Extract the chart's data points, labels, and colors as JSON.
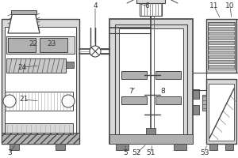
{
  "bg_color": "#ffffff",
  "line_color": "#444444",
  "gray_light": "#d8d8d8",
  "gray_mid": "#b0b0b0",
  "gray_dark": "#888888",
  "label_fontsize": 6.5,
  "label_color": "#333333"
}
